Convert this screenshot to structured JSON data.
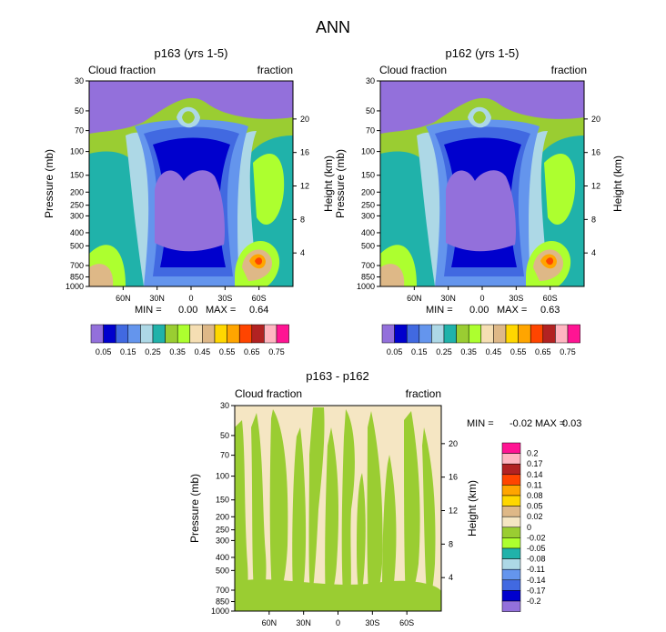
{
  "title": "ANN",
  "colors": {
    "levels": [
      "#9370DB",
      "#0000CD",
      "#4169E1",
      "#6495ED",
      "#ADD8E6",
      "#20B2AA",
      "#9ACD32",
      "#ADFF2F",
      "#F5DEB3",
      "#DEB887",
      "#FFD700",
      "#FFA500",
      "#FF4500",
      "#B22222",
      "#FFB6C1",
      "#FF1493"
    ],
    "diff": [
      "#9370DB",
      "#0000CD",
      "#4169E1",
      "#6495ED",
      "#ADD8E6",
      "#20B2AA",
      "#ADFF2F",
      "#9ACD32",
      "#F5E6C3",
      "#DEB887",
      "#FFD700",
      "#FFA500",
      "#FF4500",
      "#B22222",
      "#FFB6C1",
      "#FF1493"
    ]
  },
  "chart_data": [
    {
      "type": "contour",
      "title": "p163 (yrs 1-5)",
      "left_label": "Cloud fraction",
      "right_label": "fraction",
      "ylabel": "Pressure (mb)",
      "ylabel_right": "Height (km)",
      "pressure_ticks": [
        "30",
        "50",
        "70",
        "100",
        "150",
        "200",
        "250",
        "300",
        "400",
        "500",
        "700",
        "850",
        "1000"
      ],
      "height_ticks": [
        "20",
        "16",
        "12",
        "8",
        "4"
      ],
      "lat_ticks": [
        "60N",
        "30N",
        "0",
        "30S",
        "60S"
      ],
      "min_label": "MIN =",
      "min_value": "0.00",
      "max_label": "MAX =",
      "max_value": "0.64",
      "colorbar_labels": [
        "0.05",
        "0.15",
        "0.25",
        "0.35",
        "0.45",
        "0.55",
        "0.65",
        "0.75"
      ]
    },
    {
      "type": "contour",
      "title": "p162 (yrs 1-5)",
      "left_label": "Cloud fraction",
      "right_label": "fraction",
      "ylabel": "Pressure (mb)",
      "ylabel_right": "Height (km)",
      "pressure_ticks": [
        "30",
        "50",
        "70",
        "100",
        "150",
        "200",
        "250",
        "300",
        "400",
        "500",
        "700",
        "850",
        "1000"
      ],
      "height_ticks": [
        "20",
        "16",
        "12",
        "8",
        "4"
      ],
      "lat_ticks": [
        "60N",
        "30N",
        "0",
        "30S",
        "60S"
      ],
      "min_label": "MIN =",
      "min_value": "0.00",
      "max_label": "MAX =",
      "max_value": "0.63",
      "colorbar_labels": [
        "0.05",
        "0.15",
        "0.25",
        "0.35",
        "0.45",
        "0.55",
        "0.65",
        "0.75"
      ]
    },
    {
      "type": "contour",
      "title": "p163 - p162",
      "left_label": "Cloud fraction",
      "right_label": "fraction",
      "ylabel": "Pressure (mb)",
      "ylabel_right": "Height (km)",
      "pressure_ticks": [
        "30",
        "50",
        "70",
        "100",
        "150",
        "200",
        "250",
        "300",
        "400",
        "500",
        "700",
        "850",
        "1000"
      ],
      "height_ticks": [
        "20",
        "16",
        "12",
        "8",
        "4"
      ],
      "lat_ticks": [
        "60N",
        "30N",
        "0",
        "30S",
        "60S"
      ],
      "min_label": "MIN =",
      "min_value": "-0.02",
      "max_label": "MAX =",
      "max_value": "0.03",
      "colorbar_labels": [
        "0.2",
        "0.17",
        "0.14",
        "0.11",
        "0.08",
        "0.05",
        "0.02",
        "0",
        "-0.02",
        "-0.05",
        "-0.08",
        "-0.11",
        "-0.14",
        "-0.17",
        "-0.2"
      ]
    }
  ]
}
